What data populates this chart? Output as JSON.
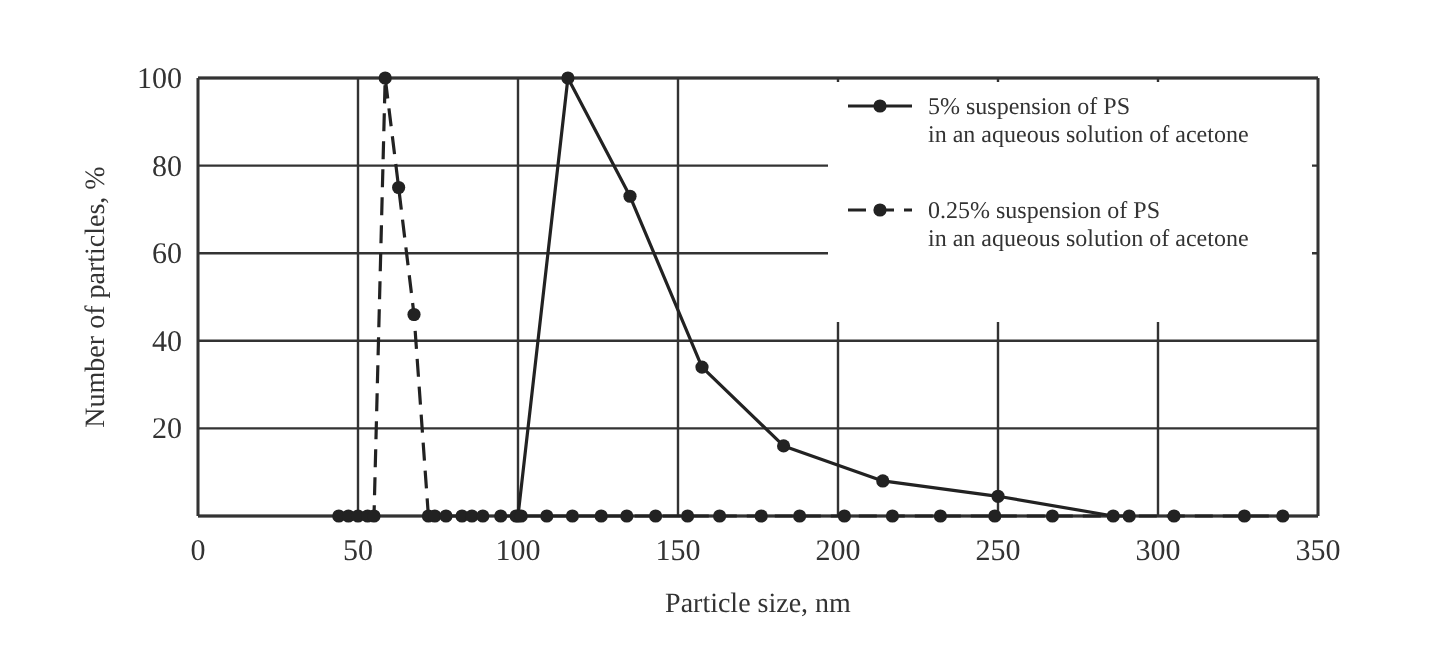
{
  "chart_data": {
    "type": "line",
    "xlabel": "Particle size, nm",
    "ylabel": "Number of particles, %",
    "xlim": [
      0,
      350
    ],
    "ylim": [
      0,
      100
    ],
    "xticks": [
      0,
      50,
      100,
      150,
      200,
      250,
      300,
      350
    ],
    "yticks": [
      {
        "value": 0,
        "label": null
      },
      20,
      40,
      60,
      80,
      100
    ],
    "grid": true,
    "legend": "top right",
    "marker": "circle",
    "series": [
      {
        "name": "5% suspension of PS\nin an aqueous solution of acetone",
        "color": "#222222",
        "line_style": "solid",
        "x": [
          100,
          115.6,
          135,
          157.5,
          183,
          214,
          250,
          286
        ],
        "values": [
          0,
          100,
          73,
          34,
          16,
          8,
          4.5,
          0
        ]
      },
      {
        "name": "0.25% suspension of PS\nin an aqueous solution of acetone",
        "color": "#222222",
        "line_style": "dashed",
        "x": [
          44,
          47,
          50,
          53,
          55,
          58.5,
          62.7,
          67.5,
          72,
          74,
          77.5,
          82.5,
          85.6,
          89,
          94.6,
          99.4,
          101,
          109,
          117,
          126,
          134,
          143,
          153,
          163,
          176,
          188,
          202,
          217,
          232,
          249,
          267,
          291,
          305,
          327,
          339
        ],
        "values": [
          0,
          0,
          0,
          0,
          0,
          100,
          75,
          46,
          0,
          0,
          0,
          0,
          0,
          0,
          0,
          0,
          0,
          0,
          0,
          0,
          0,
          0,
          0,
          0,
          0,
          0,
          0,
          0,
          0,
          0,
          0,
          0,
          0,
          0,
          0
        ]
      }
    ]
  }
}
